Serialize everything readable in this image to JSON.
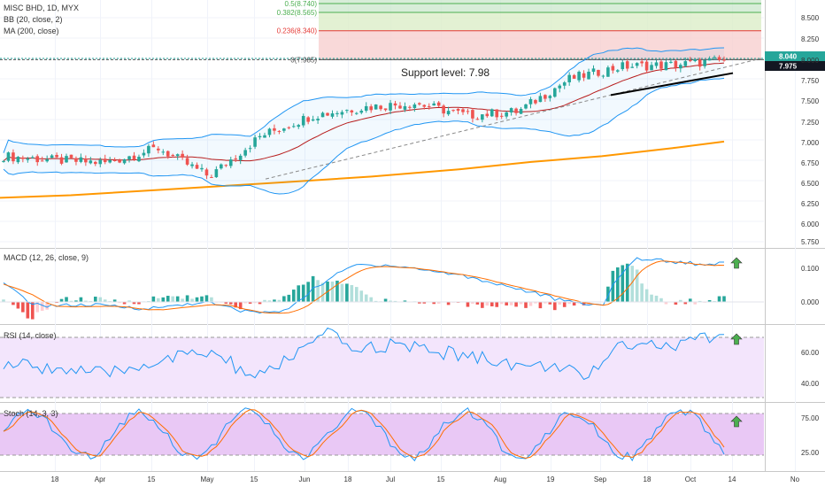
{
  "header": {
    "symbol_line": "MISC BHD, 1D, MYX",
    "bb_label": "BB (20, close, 2)",
    "ma_label": "MA (200, close)"
  },
  "fib_levels": [
    {
      "label": "0.5(8.740)",
      "value": 8.74,
      "color": "#4caf50"
    },
    {
      "label": "0.382(8.565)",
      "value": 8.565,
      "color": "#4caf50"
    },
    {
      "label": "0.236(8.340)",
      "value": 8.34,
      "color": "#e53935"
    },
    {
      "label": "0(7.985)",
      "value": 7.985,
      "color": "#555555"
    }
  ],
  "annotation": {
    "support_text": "Support level: 7.98"
  },
  "price_tags": [
    {
      "text": "8.040",
      "bg": "#26a69a",
      "fg": "#ffffff"
    },
    {
      "text": "7.975",
      "bg": "#131722",
      "fg": "#ffffff"
    }
  ],
  "price_axis": {
    "ticks": [
      "8.500",
      "8.250",
      "8.000",
      "7.750",
      "7.500",
      "7.250",
      "7.000",
      "6.750",
      "6.500",
      "6.250",
      "6.000",
      "5.750"
    ]
  },
  "macd_panel": {
    "title": "MACD (12, 26, close, 9)",
    "ticks": [
      "0.100",
      "0.000"
    ]
  },
  "rsi_panel": {
    "title": "RSI (14, close)",
    "ticks": [
      "60.00",
      "40.00"
    ]
  },
  "stoch_panel": {
    "title": "Stoch (14, 3, 3)",
    "ticks": [
      "75.00",
      "25.00"
    ]
  },
  "time_axis": {
    "labels": [
      "18",
      "Apr",
      "15",
      "May",
      "15",
      "Jun",
      "18",
      "Jul",
      "15",
      "Aug",
      "19",
      "Sep",
      "18",
      "Oct",
      "14",
      "No"
    ]
  },
  "colors": {
    "up": "#26a69a",
    "down": "#ef5350",
    "bb_band": "#2196f3",
    "bb_basis": "#b71c1c",
    "ma200": "#ff9800",
    "macd_line": "#2196f3",
    "signal_line": "#ff6d00",
    "rsi_line": "#2196f3",
    "rsi_fill": "#f3e5fc",
    "stoch_k": "#2196f3",
    "stoch_d": "#ff6d00",
    "stoch_fill": "#e9c8f5",
    "arrow": "#4caf50"
  },
  "chart_data": {
    "type": "candlestick",
    "symbol": "MISC BHD",
    "interval": "1D",
    "exchange": "MYX",
    "ylim": [
      5.7,
      8.6
    ],
    "price_axis_ticks": [
      8.5,
      8.25,
      8.0,
      7.75,
      7.5,
      7.25,
      7.0,
      6.75,
      6.5,
      6.25,
      6.0,
      5.75
    ],
    "support_level": 7.98,
    "last_price": 7.975,
    "bar_high_tag": 8.04,
    "fib_retracement": [
      {
        "level": 0.5,
        "price": 8.74
      },
      {
        "level": 0.382,
        "price": 8.565
      },
      {
        "level": 0.236,
        "price": 8.34
      },
      {
        "level": 0,
        "price": 7.985
      }
    ],
    "segments": [
      {
        "label": "18",
        "close": 6.8
      },
      {
        "label": "Apr",
        "close": 6.75
      },
      {
        "label": "15",
        "close": 6.72
      },
      {
        "label": "May",
        "close": 6.9
      },
      {
        "label": "15",
        "close": 6.55
      },
      {
        "label": "Jun",
        "close": 7.05
      },
      {
        "label": "18",
        "close": 7.3
      },
      {
        "label": "Jul",
        "close": 7.4
      },
      {
        "label": "15",
        "close": 7.45
      },
      {
        "label": "Aug",
        "close": 7.3
      },
      {
        "label": "19",
        "close": 7.35
      },
      {
        "label": "Sep",
        "close": 7.75
      },
      {
        "label": "18",
        "close": 7.9
      },
      {
        "label": "Oct",
        "close": 7.92
      },
      {
        "label": "14",
        "close": 7.975
      }
    ],
    "ma200_range": [
      6.28,
      6.98
    ],
    "indicators": {
      "macd": {
        "params": "12, 26, close, 9",
        "ticks": [
          0.1,
          0.0
        ]
      },
      "rsi": {
        "params": "14, close",
        "ticks": [
          60,
          40
        ],
        "bands": [
          70,
          30
        ]
      },
      "stoch": {
        "params": "14, 3, 3",
        "ticks": [
          75,
          25
        ],
        "bands": [
          80,
          20
        ]
      }
    }
  }
}
